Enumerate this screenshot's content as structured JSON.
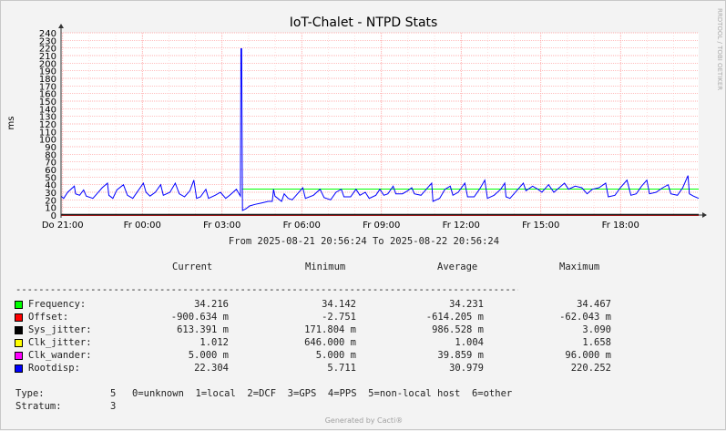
{
  "sidebar_text": "RRDTOOL / TOBI OETIKER",
  "footer": "Generated by Cacti®",
  "time_range": {
    "from_label": "From",
    "from": "2025-08-21 20:56:24",
    "to_label": "To",
    "to": "2025-08-22 20:56:24"
  },
  "columns": [
    "Current",
    "Minimum",
    "Average",
    "Maximum"
  ],
  "divider": "-------------------------------------------------------------------------------------------",
  "legend": [
    {
      "name": "Frequency:",
      "color": "#00ff00",
      "current": "34.216",
      "minimum": "34.142",
      "average": "34.231",
      "maximum": "34.467"
    },
    {
      "name": "Offset:",
      "color": "#ff0000",
      "current": "-900.634 m",
      "minimum": "-2.751",
      "average": "-614.205 m",
      "maximum": "-62.043 m"
    },
    {
      "name": "Sys_jitter:",
      "color": "#000000",
      "current": "613.391 m",
      "minimum": "171.804 m",
      "average": "986.528 m",
      "maximum": "3.090"
    },
    {
      "name": "Clk_jitter:",
      "color": "#ffff00",
      "current": "1.012",
      "minimum": "646.000 m",
      "average": "1.004",
      "maximum": "1.658"
    },
    {
      "name": "Clk_wander:",
      "color": "#ff00ff",
      "current": "5.000 m",
      "minimum": "5.000 m",
      "average": "39.859 m",
      "maximum": "96.000 m"
    },
    {
      "name": "Rootdisp:",
      "color": "#0000ff",
      "current": "22.304",
      "minimum": "5.711",
      "average": "30.979",
      "maximum": "220.252"
    }
  ],
  "info": [
    {
      "label": "Type:",
      "value": "5",
      "desc": "0=unknown  1=local  2=DCF  3=GPS  4=PPS  5=non-local host  6=other"
    },
    {
      "label": "Stratum:",
      "value": "3",
      "desc": ""
    }
  ],
  "chart_data": {
    "type": "line",
    "title": "IoT-Chalet - NTPD Stats",
    "ylabel": "ms",
    "xlabel": "",
    "ylim": [
      0,
      240
    ],
    "yticks": [
      0,
      10,
      20,
      30,
      40,
      50,
      60,
      70,
      80,
      90,
      100,
      110,
      120,
      130,
      140,
      150,
      160,
      170,
      180,
      190,
      200,
      210,
      220,
      230,
      240
    ],
    "x_range_hours": [
      0,
      24
    ],
    "x_tick_hours": [
      0.06,
      3.06,
      6.06,
      9.06,
      12.06,
      15.06,
      18.06,
      21.06
    ],
    "x_tick_labels": [
      "Do 21:00",
      "Fr 00:00",
      "Fr 03:00",
      "Fr 06:00",
      "Fr 09:00",
      "Fr 12:00",
      "Fr 15:00",
      "Fr 18:00"
    ],
    "grid": true,
    "colors": {
      "grid_major": "#ff9999",
      "grid_minor": "#ffcccc",
      "axis": "#ff0000",
      "plot_bg": "#ffffff"
    },
    "series": [
      {
        "name": "Frequency",
        "color": "#00ff00",
        "points": [
          [
            6.8,
            34.2
          ],
          [
            24,
            34.2
          ]
        ]
      },
      {
        "name": "Offset",
        "color": "#ff0000",
        "points": [
          [
            0,
            -0.6
          ],
          [
            24,
            -0.6
          ]
        ]
      },
      {
        "name": "Sys_jitter",
        "color": "#000000",
        "points": [
          [
            0,
            1.0
          ],
          [
            24,
            1.0
          ]
        ]
      },
      {
        "name": "Rootdisp",
        "color": "#0000ff",
        "points": [
          [
            0.0,
            25
          ],
          [
            0.1,
            22
          ],
          [
            0.25,
            30
          ],
          [
            0.5,
            38
          ],
          [
            0.55,
            28
          ],
          [
            0.7,
            26
          ],
          [
            0.85,
            33
          ],
          [
            0.95,
            25
          ],
          [
            1.2,
            22
          ],
          [
            1.35,
            28
          ],
          [
            1.55,
            36
          ],
          [
            1.75,
            42
          ],
          [
            1.8,
            26
          ],
          [
            1.95,
            22
          ],
          [
            2.1,
            33
          ],
          [
            2.35,
            40
          ],
          [
            2.5,
            26
          ],
          [
            2.7,
            22
          ],
          [
            2.9,
            32
          ],
          [
            3.1,
            42
          ],
          [
            3.2,
            30
          ],
          [
            3.35,
            25
          ],
          [
            3.55,
            30
          ],
          [
            3.75,
            40
          ],
          [
            3.85,
            26
          ],
          [
            4.1,
            30
          ],
          [
            4.3,
            42
          ],
          [
            4.45,
            28
          ],
          [
            4.65,
            24
          ],
          [
            4.85,
            32
          ],
          [
            5.0,
            46
          ],
          [
            5.1,
            22
          ],
          [
            5.25,
            24
          ],
          [
            5.45,
            34
          ],
          [
            5.55,
            22
          ],
          [
            5.8,
            26
          ],
          [
            6.0,
            30
          ],
          [
            6.2,
            22
          ],
          [
            6.35,
            26
          ],
          [
            6.6,
            34
          ],
          [
            6.75,
            25
          ],
          [
            6.77,
            219
          ],
          [
            6.8,
            219
          ],
          [
            6.83,
            6
          ],
          [
            6.95,
            8
          ],
          [
            7.1,
            12
          ],
          [
            7.3,
            14
          ],
          [
            7.55,
            16
          ],
          [
            7.8,
            18
          ],
          [
            7.95,
            18
          ],
          [
            8.0,
            34
          ],
          [
            8.05,
            25
          ],
          [
            8.3,
            18
          ],
          [
            8.4,
            28
          ],
          [
            8.55,
            22
          ],
          [
            8.7,
            20
          ],
          [
            8.9,
            28
          ],
          [
            9.1,
            36
          ],
          [
            9.2,
            22
          ],
          [
            9.5,
            26
          ],
          [
            9.75,
            34
          ],
          [
            9.9,
            23
          ],
          [
            10.15,
            20
          ],
          [
            10.35,
            30
          ],
          [
            10.55,
            34
          ],
          [
            10.65,
            24
          ],
          [
            10.9,
            24
          ],
          [
            11.1,
            34
          ],
          [
            11.25,
            26
          ],
          [
            11.45,
            30
          ],
          [
            11.6,
            22
          ],
          [
            11.85,
            26
          ],
          [
            12.0,
            34
          ],
          [
            12.15,
            26
          ],
          [
            12.3,
            28
          ],
          [
            12.5,
            38
          ],
          [
            12.6,
            28
          ],
          [
            12.85,
            28
          ],
          [
            13.05,
            32
          ],
          [
            13.2,
            36
          ],
          [
            13.3,
            28
          ],
          [
            13.55,
            26
          ],
          [
            13.75,
            34
          ],
          [
            13.95,
            42
          ],
          [
            14.0,
            18
          ],
          [
            14.25,
            22
          ],
          [
            14.45,
            34
          ],
          [
            14.65,
            38
          ],
          [
            14.75,
            26
          ],
          [
            14.95,
            30
          ],
          [
            15.2,
            42
          ],
          [
            15.3,
            24
          ],
          [
            15.55,
            24
          ],
          [
            15.75,
            34
          ],
          [
            15.95,
            46
          ],
          [
            16.05,
            22
          ],
          [
            16.3,
            26
          ],
          [
            16.55,
            34
          ],
          [
            16.7,
            42
          ],
          [
            16.75,
            24
          ],
          [
            16.9,
            22
          ],
          [
            17.15,
            32
          ],
          [
            17.4,
            42
          ],
          [
            17.5,
            32
          ],
          [
            17.75,
            38
          ],
          [
            17.95,
            34
          ],
          [
            18.1,
            30
          ],
          [
            18.35,
            40
          ],
          [
            18.55,
            30
          ],
          [
            18.75,
            36
          ],
          [
            18.95,
            42
          ],
          [
            19.1,
            34
          ],
          [
            19.35,
            38
          ],
          [
            19.6,
            36
          ],
          [
            19.8,
            28
          ],
          [
            20.0,
            34
          ],
          [
            20.25,
            36
          ],
          [
            20.5,
            42
          ],
          [
            20.6,
            24
          ],
          [
            20.85,
            26
          ],
          [
            21.05,
            36
          ],
          [
            21.3,
            46
          ],
          [
            21.45,
            26
          ],
          [
            21.65,
            28
          ],
          [
            21.85,
            38
          ],
          [
            22.05,
            46
          ],
          [
            22.15,
            28
          ],
          [
            22.4,
            30
          ],
          [
            22.65,
            36
          ],
          [
            22.85,
            40
          ],
          [
            22.95,
            28
          ],
          [
            23.2,
            26
          ],
          [
            23.4,
            36
          ],
          [
            23.6,
            52
          ],
          [
            23.65,
            28
          ],
          [
            23.8,
            25
          ],
          [
            24.0,
            22
          ]
        ]
      }
    ]
  }
}
